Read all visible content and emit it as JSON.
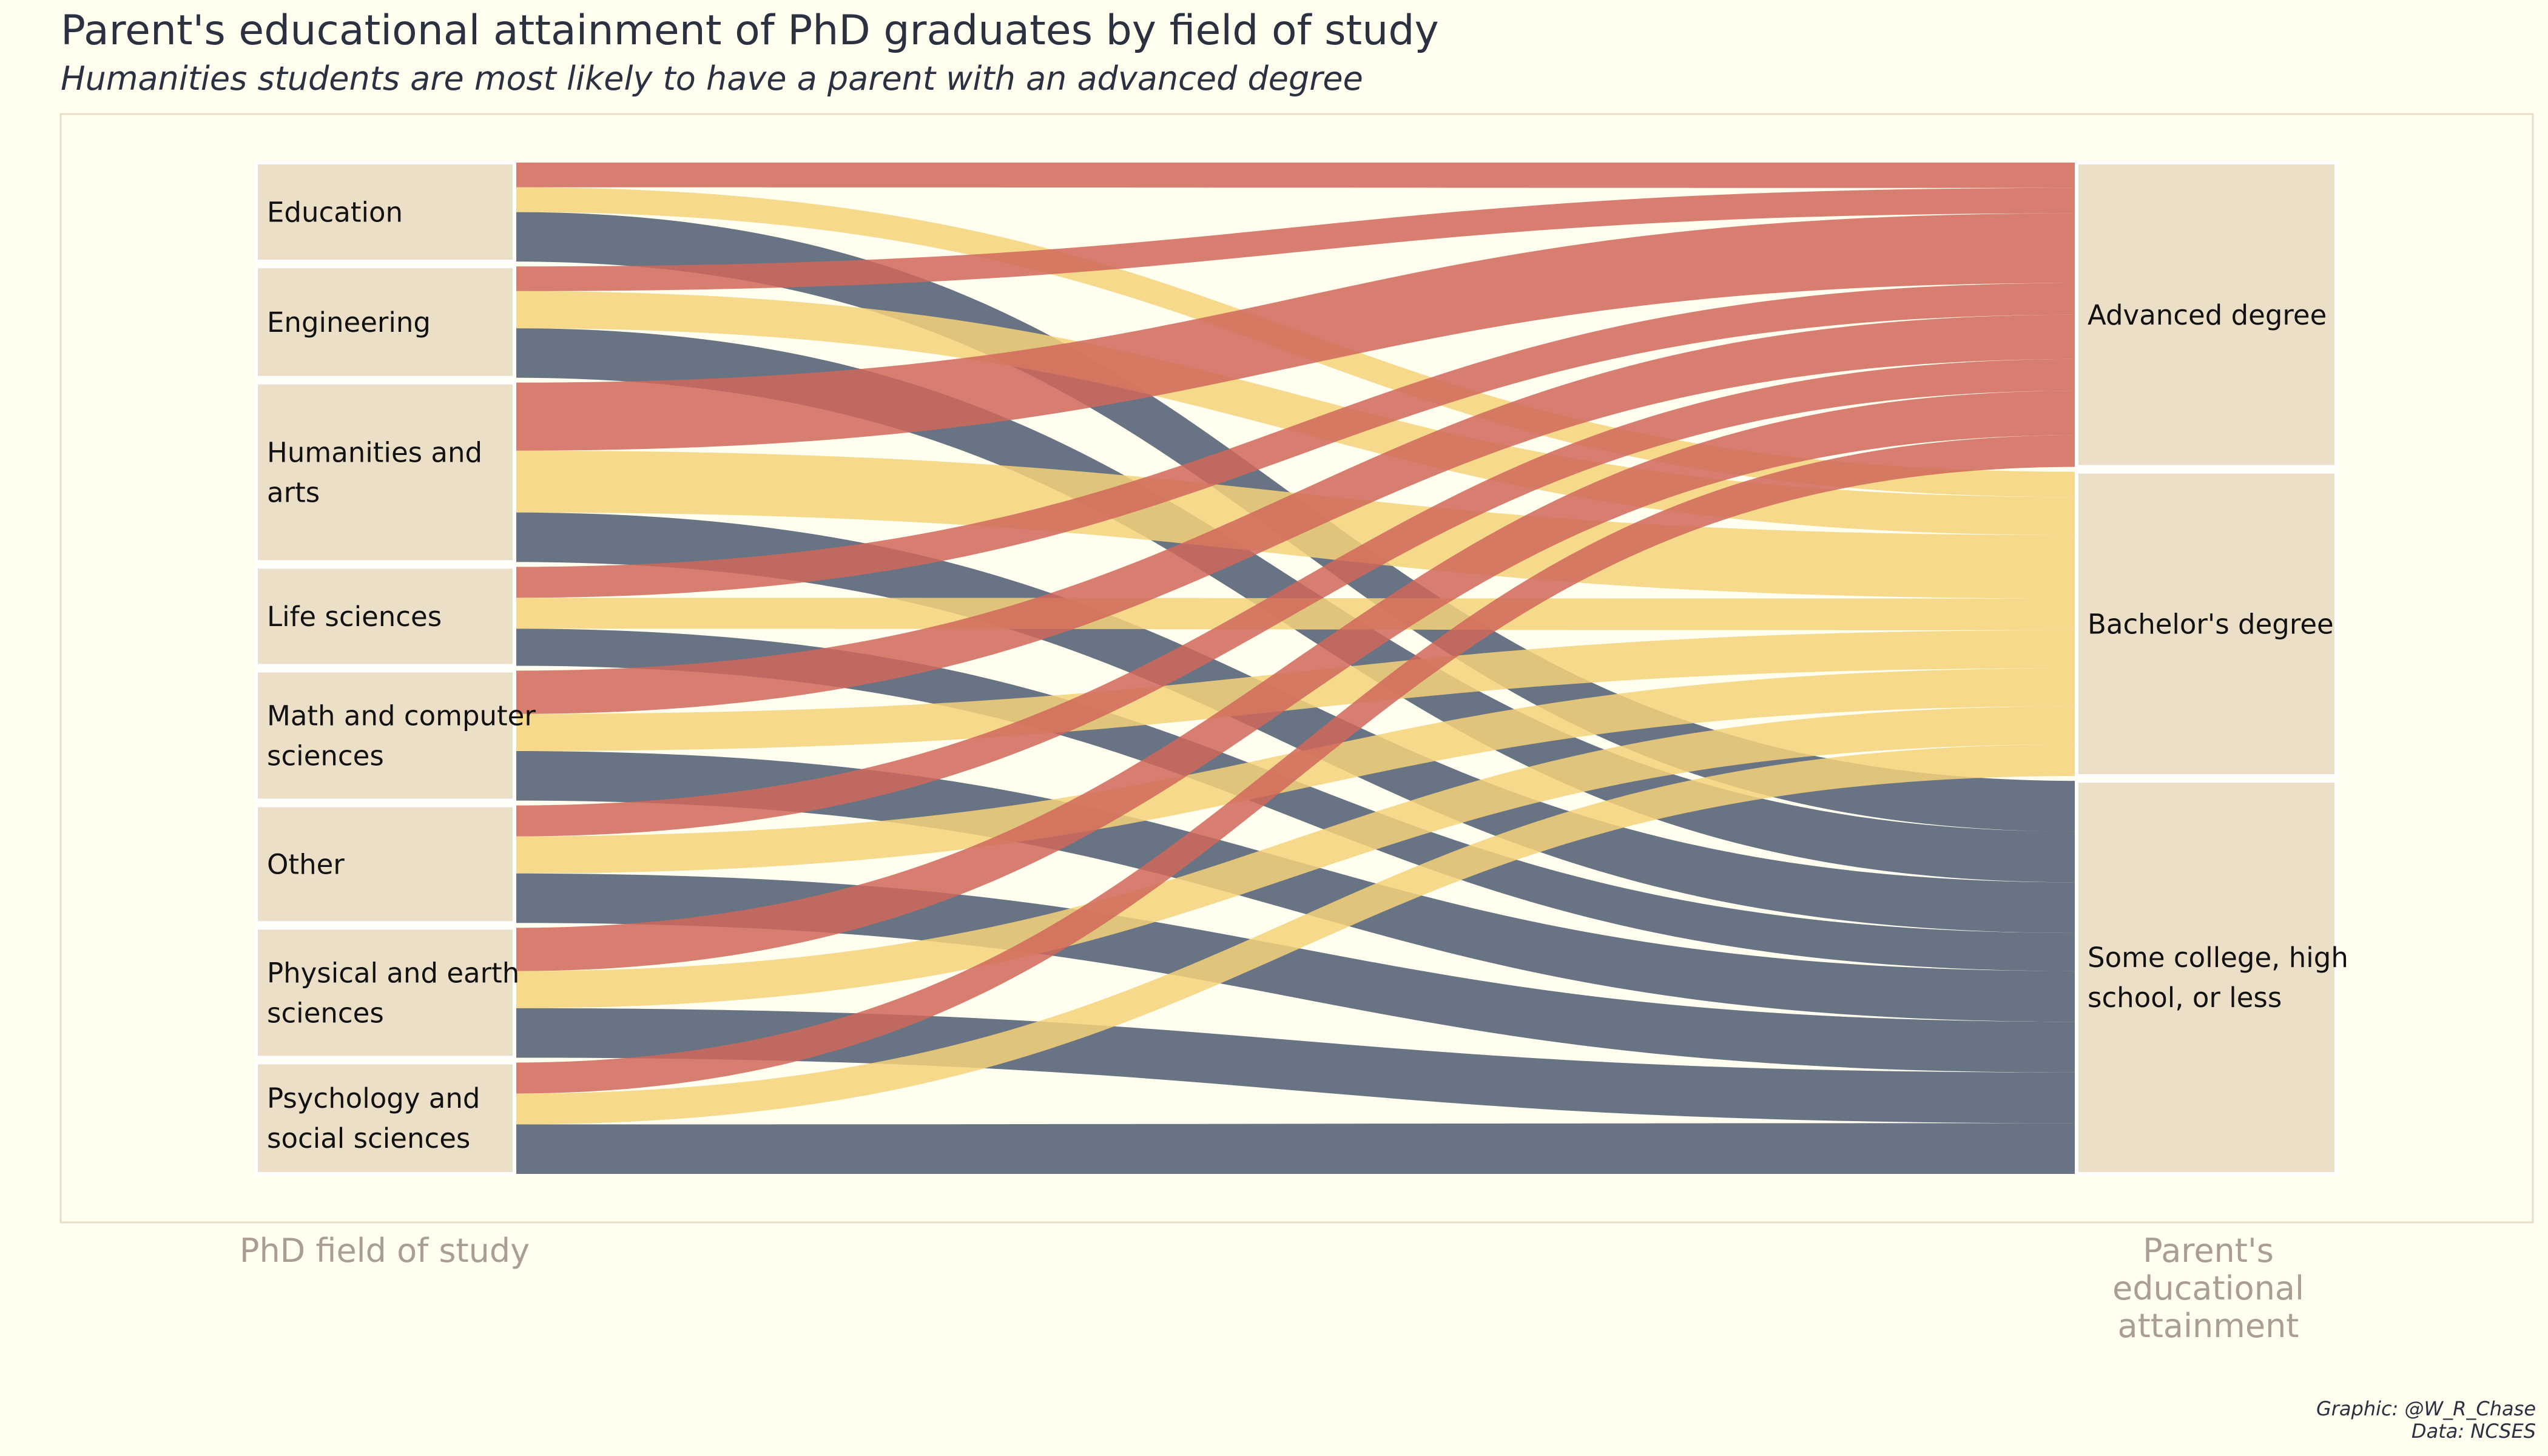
{
  "chart_data": {
    "type": "alluvial",
    "title": "Parent's educational attainment of PhD graduates by field of study",
    "subtitle": "Humanities students are most likely to have a parent with an advanced degree",
    "axis_labels": [
      "PhD field of study",
      "Parent's educational attainment"
    ],
    "fields": [
      {
        "name": "Education",
        "label_lines": [
          "Education"
        ],
        "flows": [
          1,
          1,
          2
        ]
      },
      {
        "name": "Engineering",
        "label_lines": [
          "Engineering"
        ],
        "flows": [
          1,
          1.5,
          2
        ]
      },
      {
        "name": "Humanities and arts",
        "label_lines": [
          "Humanities and",
          "arts"
        ],
        "flows": [
          2.75,
          2.5,
          2
        ]
      },
      {
        "name": "Life sciences",
        "label_lines": [
          "Life sciences"
        ],
        "flows": [
          1.25,
          1.25,
          1.5
        ]
      },
      {
        "name": "Math and computer sciences",
        "label_lines": [
          "Math and computer",
          "sciences"
        ],
        "flows": [
          1.75,
          1.5,
          2
        ]
      },
      {
        "name": "Other",
        "label_lines": [
          "Other"
        ],
        "flows": [
          1.25,
          1.5,
          2
        ]
      },
      {
        "name": "Physical and earth sciences",
        "label_lines": [
          "Physical and earth",
          "sciences"
        ],
        "flows": [
          1.75,
          1.5,
          2
        ]
      },
      {
        "name": "Psychology and social sciences",
        "label_lines": [
          "Psychology and",
          "social sciences"
        ],
        "flows": [
          1.25,
          1.25,
          2
        ]
      }
    ],
    "parent_levels": [
      {
        "name": "Advanced degree",
        "label_lines": [
          "Advanced degree"
        ]
      },
      {
        "name": "Bachelor's degree",
        "label_lines": [
          "Bachelor's degree"
        ]
      },
      {
        "name": "Some college, high school, or less",
        "label_lines": [
          "Some college, high",
          "school, or less"
        ]
      }
    ],
    "colors": {
      "Advanced degree": "#d0675a",
      "Bachelor's degree": "#f6d27a",
      "Some college, high school, or less": "#4e5b70"
    },
    "node_fill": "#ecdfc8",
    "background": "#fffeef",
    "panel_border": "#e8dcc5"
  },
  "caption": {
    "graphic": "Graphic: @W_R_Chase",
    "data": "Data: NCSES"
  }
}
